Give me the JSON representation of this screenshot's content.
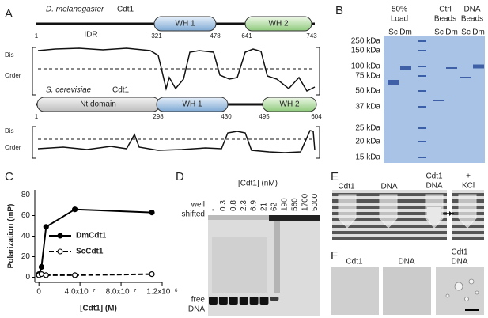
{
  "panel_labels": [
    "A",
    "B",
    "C",
    "D",
    "E",
    "F"
  ],
  "panel_a": {
    "dm": {
      "species": "D. melanogaster",
      "protein": "Cdt1",
      "region": "IDR",
      "domains": [
        "WH 1",
        "WH 2"
      ],
      "positions": [
        1,
        321,
        478,
        641,
        743
      ]
    },
    "sc": {
      "species": "S. cerevisiae",
      "protein": "Cdt1",
      "domains": [
        "Nt domain",
        "WH 1",
        "WH 2"
      ],
      "positions": [
        1,
        298,
        430,
        495,
        604
      ]
    },
    "axis_labels": [
      "Dis",
      "Order"
    ]
  },
  "panel_b": {
    "groups": [
      [
        "50%",
        "Load"
      ],
      [
        "Ctrl",
        "Beads"
      ],
      [
        "DNA",
        "Beads"
      ]
    ],
    "lanes": [
      "Sc",
      "Dm"
    ],
    "markers": [
      "250 kDa",
      "150 kDa",
      "100 kDa",
      "75 kDa",
      "50 kDa",
      "37 kDa",
      "25 kDa",
      "20 kDa",
      "15 kDa"
    ]
  },
  "chart_data": {
    "type": "scatter",
    "ylabel": "Polarization (mP)",
    "xlabel": "[Cdt1] (M)",
    "x": [
      0,
      2.5e-08,
      7e-08,
      3.5e-07,
      1.1e-06
    ],
    "series": [
      {
        "name": "DmCdt1",
        "color": "#000000",
        "dash": false,
        "values": [
          3,
          10,
          49,
          66,
          63
        ]
      },
      {
        "name": "ScCdt1",
        "color": "#000000",
        "dash": true,
        "values": [
          2,
          3,
          2,
          2,
          3
        ]
      }
    ],
    "xlim": [
      -4e-08,
      1.2e-06
    ],
    "xticks": [
      0,
      {
        "value": 4e-07,
        "label": "4.0x10⁻⁷"
      },
      {
        "value": 8e-07,
        "label": "8.0x10⁻⁷"
      },
      {
        "value": 1.2e-06,
        "label": "1.2x10⁻⁶"
      }
    ],
    "ylim": [
      -5,
      85
    ],
    "yticks": [
      0,
      20,
      40,
      60,
      80
    ]
  },
  "panel_d": {
    "title": "[Cdt1] (nM)",
    "lanes": [
      "-",
      "0.3",
      "0.8",
      "2.3",
      "6.9",
      "21",
      "62",
      "190",
      "560",
      "1700",
      "5000"
    ],
    "well": "well",
    "shifted": "shifted",
    "free": [
      "free",
      "DNA"
    ]
  },
  "panel_e": {
    "labels": [
      [
        "Cdt1"
      ],
      [
        "DNA"
      ],
      [
        "Cdt1",
        "DNA"
      ],
      [
        "+",
        "KCl"
      ]
    ]
  },
  "panel_f": {
    "labels": [
      [
        "Cdt1"
      ],
      [
        "DNA"
      ],
      [
        "Cdt1",
        "DNA"
      ]
    ]
  }
}
